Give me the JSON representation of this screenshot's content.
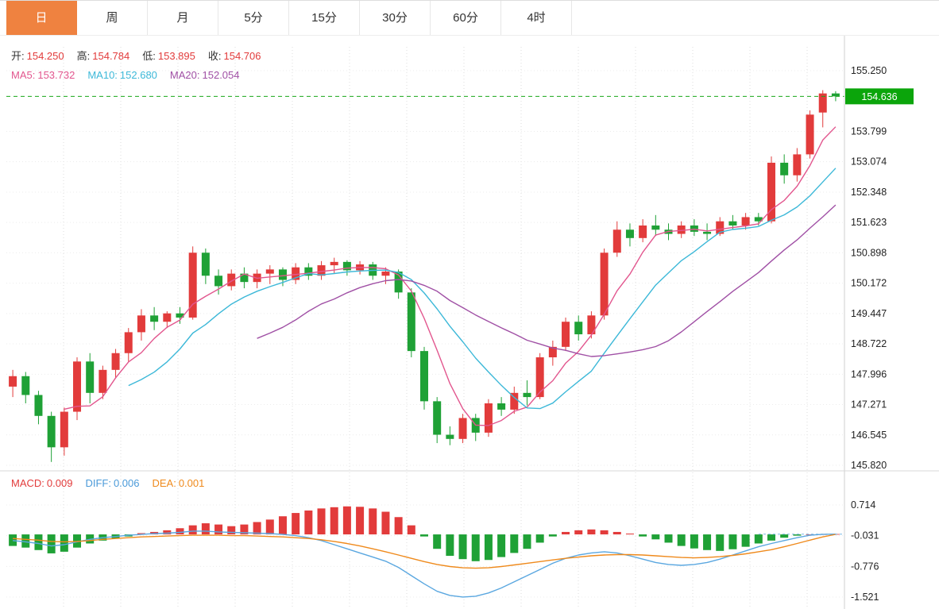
{
  "tabs": {
    "items": [
      {
        "label": "日",
        "name": "day",
        "active": true
      },
      {
        "label": "周",
        "name": "week",
        "active": false
      },
      {
        "label": "月",
        "name": "month",
        "active": false
      },
      {
        "label": "5分",
        "name": "5min",
        "active": false
      },
      {
        "label": "15分",
        "name": "15min",
        "active": false
      },
      {
        "label": "30分",
        "name": "30min",
        "active": false
      },
      {
        "label": "60分",
        "name": "60min",
        "active": false
      },
      {
        "label": "4时",
        "name": "4hour",
        "active": false
      }
    ]
  },
  "ohlc_header": {
    "open_label": "开:",
    "open": "154.250",
    "high_label": "高:",
    "high": "154.784",
    "low_label": "低:",
    "low": "153.895",
    "close_label": "收:",
    "close": "154.706"
  },
  "ma_header": {
    "ma5_label": "MA5:",
    "ma5": "153.732",
    "ma10_label": "MA10:",
    "ma10": "152.680",
    "ma20_label": "MA20:",
    "ma20": "152.054"
  },
  "macd_header": {
    "macd_label": "MACD:",
    "macd": "0.009",
    "diff_label": "DIFF:",
    "diff": "0.006",
    "dea_label": "DEA:",
    "dea": "0.001"
  },
  "price_axis": {
    "current_price": "154.636",
    "labels": [
      "155.250",
      "153.799",
      "153.074",
      "152.348",
      "151.623",
      "150.898",
      "150.172",
      "149.447",
      "148.722",
      "147.996",
      "147.271",
      "146.545",
      "145.820"
    ]
  },
  "macd_axis": {
    "labels": [
      "0.714",
      "-0.031",
      "-0.776",
      "-1.521"
    ]
  },
  "colors": {
    "up": "#e23b3b",
    "down": "#1fa136",
    "badge": "#0ba50b",
    "dashed_line": "#18a818",
    "ma5": "#e2568e",
    "ma10": "#3cb8d8",
    "ma20": "#a050a5",
    "diff": "#5aa7e0",
    "dea": "#ef8a1c",
    "tab_active_bg": "#ef8240",
    "grid": "#dcdcdc",
    "axis_line": "#cfcfcf",
    "text": "#222222"
  },
  "chart_data": {
    "type": "candlestick",
    "panels": [
      {
        "name": "price",
        "ylim": [
          145.82,
          155.25
        ],
        "current_price": 154.636,
        "ma_periods": [
          5,
          10,
          20
        ],
        "axis_ticks": [
          "155.250",
          "153.799",
          "153.074",
          "152.348",
          "151.623",
          "150.898",
          "150.172",
          "149.447",
          "148.722",
          "147.996",
          "147.271",
          "146.545",
          "145.820"
        ],
        "candles_ohlc": [
          [
            147.7,
            148.1,
            147.45,
            147.95
          ],
          [
            147.95,
            148.05,
            147.3,
            147.5
          ],
          [
            147.5,
            147.6,
            146.8,
            147.0
          ],
          [
            147.0,
            147.1,
            145.9,
            146.25
          ],
          [
            146.25,
            147.2,
            146.05,
            147.1
          ],
          [
            147.1,
            148.4,
            146.9,
            148.3
          ],
          [
            148.3,
            148.5,
            147.3,
            147.55
          ],
          [
            147.55,
            148.2,
            147.4,
            148.1
          ],
          [
            148.1,
            148.6,
            147.9,
            148.5
          ],
          [
            148.5,
            149.1,
            148.3,
            149.0
          ],
          [
            149.0,
            149.55,
            148.8,
            149.4
          ],
          [
            149.4,
            149.6,
            149.05,
            149.25
          ],
          [
            149.25,
            149.5,
            149.1,
            149.45
          ],
          [
            149.45,
            149.6,
            149.2,
            149.35
          ],
          [
            149.35,
            151.05,
            149.3,
            150.9
          ],
          [
            150.9,
            151.0,
            150.15,
            150.35
          ],
          [
            150.35,
            150.5,
            149.9,
            150.1
          ],
          [
            150.1,
            150.5,
            150.0,
            150.4
          ],
          [
            150.4,
            150.55,
            150.05,
            150.2
          ],
          [
            150.2,
            150.5,
            150.05,
            150.4
          ],
          [
            150.4,
            150.6,
            150.15,
            150.5
          ],
          [
            150.5,
            150.55,
            150.1,
            150.25
          ],
          [
            150.25,
            150.65,
            150.15,
            150.55
          ],
          [
            150.55,
            150.65,
            150.25,
            150.35
          ],
          [
            150.35,
            150.7,
            150.25,
            150.6
          ],
          [
            150.6,
            150.78,
            150.4,
            150.68
          ],
          [
            150.68,
            150.72,
            150.35,
            150.48
          ],
          [
            150.48,
            150.7,
            150.38,
            150.62
          ],
          [
            150.62,
            150.68,
            150.25,
            150.35
          ],
          [
            150.35,
            150.55,
            150.15,
            150.45
          ],
          [
            150.45,
            150.5,
            149.8,
            149.95
          ],
          [
            149.95,
            150.05,
            148.4,
            148.55
          ],
          [
            148.55,
            148.65,
            147.15,
            147.35
          ],
          [
            147.35,
            147.45,
            146.35,
            146.55
          ],
          [
            146.55,
            146.75,
            146.3,
            146.45
          ],
          [
            146.45,
            147.05,
            146.35,
            146.95
          ],
          [
            146.95,
            147.05,
            146.4,
            146.6
          ],
          [
            146.6,
            147.4,
            146.5,
            147.3
          ],
          [
            147.3,
            147.45,
            147.0,
            147.15
          ],
          [
            147.15,
            147.7,
            147.05,
            147.55
          ],
          [
            147.55,
            147.85,
            147.25,
            147.45
          ],
          [
            147.45,
            148.5,
            147.4,
            148.4
          ],
          [
            148.4,
            148.8,
            148.2,
            148.65
          ],
          [
            148.65,
            149.35,
            148.55,
            149.25
          ],
          [
            149.25,
            149.4,
            148.8,
            148.95
          ],
          [
            148.95,
            149.5,
            148.85,
            149.4
          ],
          [
            149.4,
            151.0,
            149.3,
            150.9
          ],
          [
            150.9,
            151.65,
            150.8,
            151.45
          ],
          [
            151.45,
            151.6,
            151.05,
            151.25
          ],
          [
            151.25,
            151.7,
            151.15,
            151.55
          ],
          [
            151.55,
            151.8,
            151.3,
            151.45
          ],
          [
            151.45,
            151.6,
            151.2,
            151.35
          ],
          [
            151.35,
            151.65,
            151.25,
            151.55
          ],
          [
            151.55,
            151.7,
            151.3,
            151.4
          ],
          [
            151.4,
            151.6,
            151.2,
            151.35
          ],
          [
            151.35,
            151.75,
            151.3,
            151.65
          ],
          [
            151.65,
            151.8,
            151.45,
            151.55
          ],
          [
            151.55,
            151.85,
            151.45,
            151.75
          ],
          [
            151.75,
            151.85,
            151.55,
            151.65
          ],
          [
            151.65,
            153.2,
            151.6,
            153.05
          ],
          [
            153.05,
            153.25,
            152.55,
            152.75
          ],
          [
            152.75,
            153.4,
            152.6,
            153.25
          ],
          [
            153.25,
            154.3,
            153.15,
            154.2
          ],
          [
            154.25,
            154.784,
            153.895,
            154.706
          ],
          [
            154.706,
            154.76,
            154.52,
            154.636
          ]
        ]
      },
      {
        "name": "macd",
        "axis_ticks": [
          "0.714",
          "-0.031",
          "-0.776",
          "-1.521"
        ],
        "histogram": [
          -0.28,
          -0.32,
          -0.38,
          -0.46,
          -0.42,
          -0.32,
          -0.22,
          -0.15,
          -0.1,
          -0.05,
          0.03,
          0.06,
          0.1,
          0.15,
          0.22,
          0.27,
          0.24,
          0.2,
          0.24,
          0.3,
          0.36,
          0.44,
          0.52,
          0.58,
          0.63,
          0.66,
          0.68,
          0.67,
          0.63,
          0.55,
          0.42,
          0.22,
          -0.05,
          -0.35,
          -0.52,
          -0.6,
          -0.65,
          -0.62,
          -0.55,
          -0.45,
          -0.35,
          -0.2,
          -0.05,
          0.06,
          0.1,
          0.12,
          0.1,
          0.06,
          0.02,
          -0.05,
          -0.12,
          -0.2,
          -0.28,
          -0.34,
          -0.38,
          -0.4,
          -0.36,
          -0.3,
          -0.22,
          -0.15,
          -0.08,
          -0.03,
          0.0,
          0.005,
          0.009
        ],
        "diff_line": [
          -0.15,
          -0.18,
          -0.22,
          -0.28,
          -0.25,
          -0.18,
          -0.12,
          -0.08,
          -0.05,
          -0.02,
          0.0,
          0.02,
          0.03,
          0.05,
          0.08,
          0.08,
          0.06,
          0.05,
          0.04,
          0.03,
          0.02,
          0.0,
          -0.03,
          -0.08,
          -0.15,
          -0.25,
          -0.35,
          -0.45,
          -0.55,
          -0.65,
          -0.8,
          -1.0,
          -1.2,
          -1.38,
          -1.48,
          -1.52,
          -1.5,
          -1.42,
          -1.3,
          -1.15,
          -1.0,
          -0.85,
          -0.7,
          -0.58,
          -0.5,
          -0.45,
          -0.42,
          -0.45,
          -0.52,
          -0.6,
          -0.68,
          -0.73,
          -0.75,
          -0.73,
          -0.68,
          -0.6,
          -0.5,
          -0.4,
          -0.3,
          -0.22,
          -0.15,
          -0.08,
          -0.02,
          0.003,
          0.006
        ],
        "dea_line": [
          -0.1,
          -0.12,
          -0.14,
          -0.17,
          -0.18,
          -0.17,
          -0.15,
          -0.12,
          -0.1,
          -0.08,
          -0.06,
          -0.05,
          -0.04,
          -0.03,
          -0.02,
          -0.02,
          -0.02,
          -0.03,
          -0.03,
          -0.04,
          -0.05,
          -0.06,
          -0.08,
          -0.1,
          -0.13,
          -0.17,
          -0.22,
          -0.28,
          -0.35,
          -0.42,
          -0.5,
          -0.58,
          -0.66,
          -0.73,
          -0.78,
          -0.81,
          -0.82,
          -0.81,
          -0.78,
          -0.74,
          -0.7,
          -0.66,
          -0.62,
          -0.58,
          -0.55,
          -0.52,
          -0.5,
          -0.49,
          -0.49,
          -0.5,
          -0.52,
          -0.54,
          -0.56,
          -0.57,
          -0.56,
          -0.54,
          -0.51,
          -0.47,
          -0.42,
          -0.37,
          -0.3,
          -0.22,
          -0.14,
          -0.06,
          0.001
        ]
      }
    ]
  }
}
